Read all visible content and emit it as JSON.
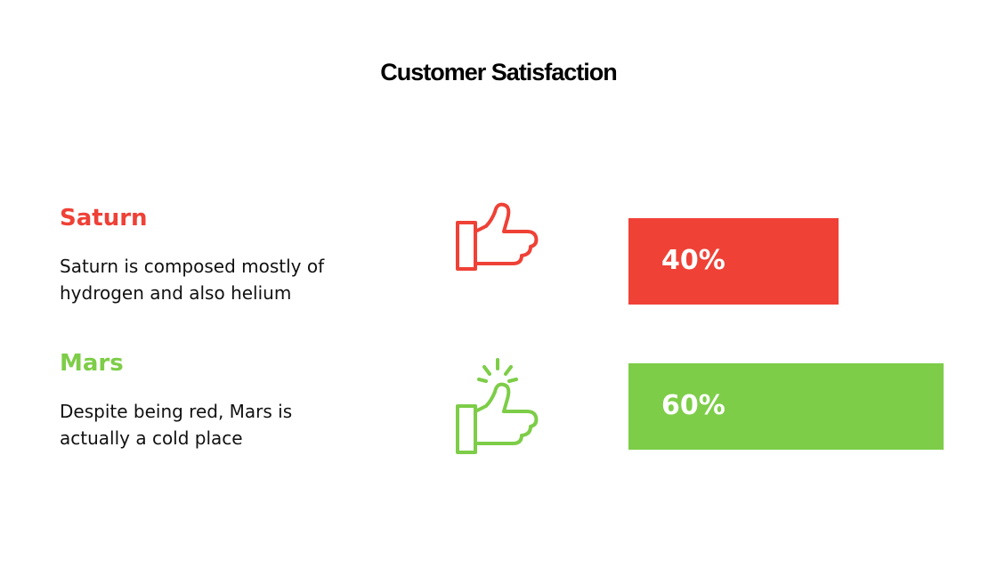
{
  "chart_data": {
    "type": "bar",
    "title": "Customer Satisfaction",
    "categories": [
      "Saturn",
      "Mars"
    ],
    "descriptions": [
      "Saturn is composed mostly of hydrogen and also helium",
      "Despite being red, Mars is actually a cold place"
    ],
    "values": [
      40,
      60
    ],
    "value_labels": [
      "40%",
      "60%"
    ],
    "colors": [
      "#ef4136",
      "#7dcd48"
    ]
  }
}
